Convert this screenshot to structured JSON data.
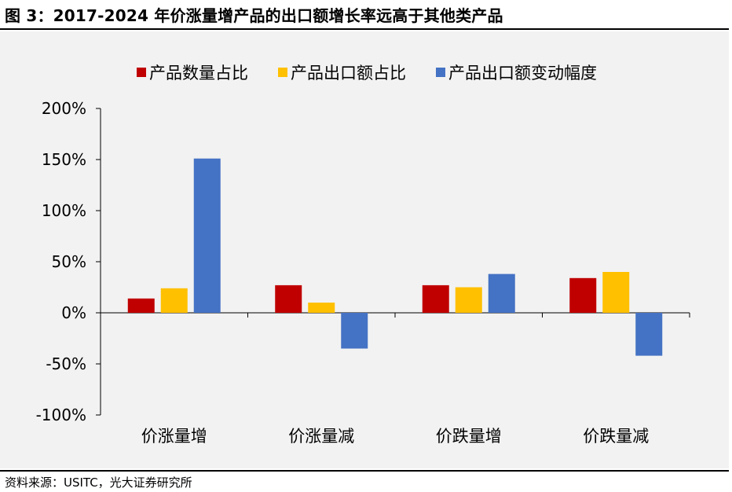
{
  "header": {
    "title": "图 3：2017-2024 年价涨量增产品的出口额增长率远高于其他类产品"
  },
  "footer": {
    "source": "资料来源：USITC，光大证券研究所"
  },
  "colors": {
    "series_1": "#c00000",
    "series_2": "#ffc000",
    "series_3": "#4472c4",
    "panel_bg": "#f2f2f2"
  },
  "chart_data": {
    "type": "bar",
    "title": "",
    "xlabel": "",
    "ylabel": "",
    "categories": [
      "价涨量增",
      "价涨量减",
      "价跌量增",
      "价跌量减"
    ],
    "series": [
      {
        "name": "产品数量占比",
        "values": [
          14,
          27,
          27,
          34
        ]
      },
      {
        "name": "产品出口额占比",
        "values": [
          24,
          10,
          25,
          40
        ]
      },
      {
        "name": "产品出口额变动幅度",
        "values": [
          151,
          -35,
          38,
          -42
        ]
      }
    ],
    "ylim": [
      -100,
      200
    ],
    "ytick_values": [
      -100,
      -50,
      0,
      50,
      100,
      150,
      200
    ],
    "ytick_labels": [
      "-100%",
      "-50%",
      "0%",
      "50%",
      "100%",
      "150%",
      "200%"
    ],
    "legend_position": "top-center",
    "grid": false
  }
}
